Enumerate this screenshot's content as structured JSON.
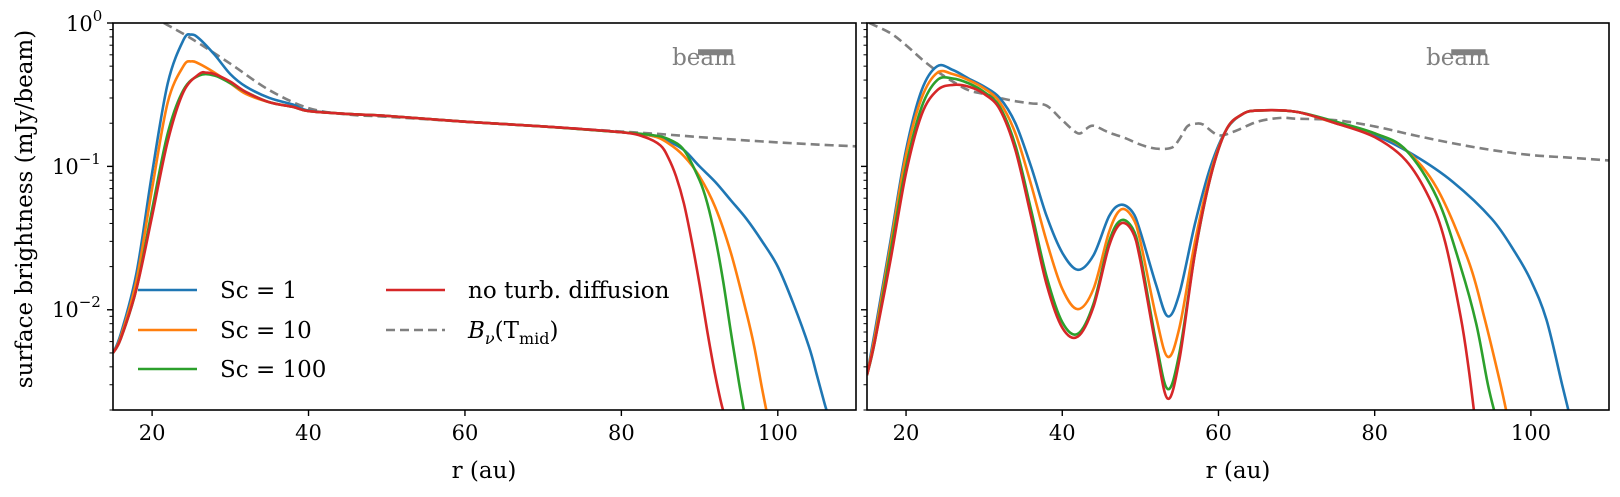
{
  "chart_data": [
    {
      "type": "line",
      "panel": "left",
      "xlabel": "r (au)",
      "ylabel": "surface brightness (mJy/beam)",
      "xlim": [
        15,
        110
      ],
      "ylim": [
        0.002,
        1.0
      ],
      "yscale": "log",
      "x_ticks": [
        20,
        40,
        60,
        80,
        100
      ],
      "y_tick_labels": [
        {
          "value": 1.0,
          "base": "10",
          "exp": "0"
        },
        {
          "value": 0.1,
          "base": "10",
          "exp": "−1"
        },
        {
          "value": 0.01,
          "base": "10",
          "exp": "−2"
        }
      ],
      "beam": {
        "label": "beam",
        "r_start": 89.8,
        "r_end": 94.2,
        "y": 0.625
      },
      "legend": {
        "placement": "lower-left",
        "columns": [
          [
            {
              "name": "Sc = 1",
              "color": "#1f77b4",
              "style": "solid"
            },
            {
              "name": "Sc = 10",
              "color": "#ff7f0e",
              "style": "solid"
            },
            {
              "name": "Sc = 100",
              "color": "#2ca02c",
              "style": "solid"
            }
          ],
          [
            {
              "name": "no turb. diffusion",
              "color": "#d62728",
              "style": "solid"
            },
            {
              "name": "B",
              "name_sub": "ν",
              "name_rest": "(T",
              "name_sub2": "mid",
              "name_end": ")",
              "color": "#808080",
              "style": "dashed"
            }
          ]
        ]
      },
      "series": [
        {
          "name": "B_nu(T_mid)",
          "color": "#808080",
          "dash": true,
          "x": [
            21.5,
            25,
            30,
            35,
            40,
            45,
            50,
            60,
            70,
            80,
            85,
            90,
            95,
            100,
            105,
            110
          ],
          "y": [
            1.0,
            0.78,
            0.52,
            0.34,
            0.255,
            0.23,
            0.222,
            0.205,
            0.19,
            0.175,
            0.168,
            0.16,
            0.153,
            0.147,
            0.142,
            0.138
          ]
        },
        {
          "name": "Sc = 1",
          "color": "#1f77b4",
          "dash": false,
          "x": [
            15,
            16,
            18,
            20,
            22,
            24,
            25,
            26,
            28,
            30,
            32,
            35,
            38,
            40,
            45,
            50,
            60,
            70,
            80,
            84,
            86,
            88,
            90,
            92,
            94,
            96,
            98,
            100,
            102,
            104,
            105,
            106,
            106.5
          ],
          "y": [
            0.005,
            0.0068,
            0.018,
            0.09,
            0.38,
            0.76,
            0.83,
            0.78,
            0.6,
            0.44,
            0.36,
            0.3,
            0.27,
            0.245,
            0.232,
            0.225,
            0.205,
            0.19,
            0.173,
            0.163,
            0.15,
            0.13,
            0.1,
            0.078,
            0.058,
            0.043,
            0.03,
            0.02,
            0.011,
            0.0055,
            0.0035,
            0.0022,
            0.0018
          ]
        },
        {
          "name": "Sc = 10",
          "color": "#ff7f0e",
          "dash": false,
          "x": [
            15,
            16,
            18,
            20,
            22,
            24,
            25,
            26,
            28,
            30,
            32,
            35,
            38,
            40,
            45,
            50,
            60,
            70,
            80,
            84,
            86,
            88,
            90,
            92,
            94,
            96,
            97,
            98,
            98.7
          ],
          "y": [
            0.005,
            0.0065,
            0.016,
            0.07,
            0.28,
            0.5,
            0.54,
            0.52,
            0.45,
            0.38,
            0.32,
            0.28,
            0.26,
            0.243,
            0.232,
            0.225,
            0.205,
            0.19,
            0.173,
            0.163,
            0.145,
            0.118,
            0.085,
            0.052,
            0.025,
            0.0095,
            0.0055,
            0.0028,
            0.0018
          ]
        },
        {
          "name": "Sc = 100",
          "color": "#2ca02c",
          "dash": false,
          "x": [
            15,
            16,
            18,
            20,
            22,
            24,
            26,
            28,
            30,
            32,
            35,
            38,
            40,
            45,
            50,
            60,
            70,
            80,
            84,
            86,
            88,
            90,
            91,
            92,
            93,
            94,
            95,
            95.8
          ],
          "y": [
            0.005,
            0.0063,
            0.014,
            0.05,
            0.17,
            0.34,
            0.43,
            0.43,
            0.38,
            0.33,
            0.28,
            0.26,
            0.243,
            0.232,
            0.225,
            0.205,
            0.19,
            0.173,
            0.165,
            0.155,
            0.13,
            0.08,
            0.055,
            0.032,
            0.016,
            0.007,
            0.0032,
            0.0018
          ]
        },
        {
          "name": "no turb. diffusion",
          "color": "#d62728",
          "dash": false,
          "x": [
            15,
            16,
            18,
            20,
            22,
            24,
            26,
            27,
            28,
            30,
            32,
            35,
            38,
            40,
            45,
            50,
            60,
            70,
            80,
            83,
            85,
            86,
            87,
            88,
            89,
            90,
            91,
            92,
            93,
            93.6
          ],
          "y": [
            0.005,
            0.0063,
            0.014,
            0.045,
            0.15,
            0.33,
            0.44,
            0.45,
            0.44,
            0.39,
            0.33,
            0.28,
            0.26,
            0.243,
            0.232,
            0.225,
            0.205,
            0.19,
            0.173,
            0.16,
            0.14,
            0.115,
            0.085,
            0.055,
            0.03,
            0.015,
            0.007,
            0.0035,
            0.002,
            0.0018
          ]
        }
      ]
    },
    {
      "type": "line",
      "panel": "right",
      "xlabel": "r (au)",
      "ylabel": "",
      "xlim": [
        15,
        110
      ],
      "ylim": [
        0.002,
        1.0
      ],
      "yscale": "log",
      "x_ticks": [
        20,
        40,
        60,
        80,
        100
      ],
      "beam": {
        "label": "beam",
        "r_start": 89.8,
        "r_end": 94.2,
        "y": 0.625
      },
      "series": [
        {
          "name": "B_nu(T_mid)",
          "color": "#808080",
          "dash": true,
          "x": [
            15.3,
            18,
            20,
            22,
            24,
            26,
            28,
            30,
            32,
            34,
            36,
            38,
            40,
            42,
            43,
            44,
            46,
            48,
            50,
            52,
            54,
            55,
            56,
            57,
            58,
            60,
            62,
            65,
            68,
            70,
            75,
            80,
            85,
            90,
            95,
            100,
            105,
            110
          ],
          "y": [
            1.0,
            0.85,
            0.7,
            0.56,
            0.46,
            0.39,
            0.34,
            0.32,
            0.3,
            0.285,
            0.275,
            0.265,
            0.21,
            0.17,
            0.182,
            0.192,
            0.172,
            0.158,
            0.142,
            0.133,
            0.135,
            0.155,
            0.19,
            0.198,
            0.196,
            0.165,
            0.175,
            0.205,
            0.218,
            0.215,
            0.21,
            0.19,
            0.165,
            0.145,
            0.13,
            0.12,
            0.115,
            0.11
          ]
        },
        {
          "name": "Sc = 1",
          "color": "#1f77b4",
          "dash": false,
          "x": [
            15,
            16,
            18,
            20,
            22,
            24,
            26,
            28,
            30,
            32,
            34,
            36,
            38,
            40,
            42,
            44,
            46,
            47.5,
            49,
            50,
            52,
            53.5,
            55,
            57,
            59,
            61,
            63,
            65,
            70,
            75,
            80,
            85,
            90,
            95,
            98,
            100,
            102,
            104,
            105
          ],
          "y": [
            0.0035,
            0.007,
            0.03,
            0.13,
            0.34,
            0.5,
            0.47,
            0.41,
            0.36,
            0.3,
            0.2,
            0.1,
            0.045,
            0.025,
            0.019,
            0.024,
            0.045,
            0.054,
            0.048,
            0.035,
            0.015,
            0.009,
            0.013,
            0.04,
            0.1,
            0.18,
            0.23,
            0.245,
            0.24,
            0.2,
            0.165,
            0.12,
            0.078,
            0.043,
            0.025,
            0.016,
            0.0085,
            0.003,
            0.0018
          ]
        },
        {
          "name": "Sc = 10",
          "color": "#ff7f0e",
          "dash": false,
          "x": [
            15,
            16,
            18,
            20,
            22,
            24,
            26,
            28,
            30,
            32,
            34,
            36,
            38,
            40,
            42,
            44,
            46,
            47.5,
            49,
            50,
            52,
            53.5,
            55,
            57,
            59,
            61,
            63,
            65,
            70,
            75,
            80,
            84,
            88,
            92,
            94,
            96,
            97
          ],
          "y": [
            0.0035,
            0.0065,
            0.028,
            0.12,
            0.3,
            0.45,
            0.44,
            0.4,
            0.35,
            0.28,
            0.17,
            0.075,
            0.03,
            0.014,
            0.0101,
            0.014,
            0.035,
            0.05,
            0.044,
            0.03,
            0.009,
            0.0047,
            0.0075,
            0.03,
            0.09,
            0.18,
            0.23,
            0.245,
            0.24,
            0.2,
            0.17,
            0.13,
            0.07,
            0.022,
            0.009,
            0.0032,
            0.0018
          ]
        },
        {
          "name": "Sc = 100",
          "color": "#2ca02c",
          "dash": false,
          "x": [
            15,
            16,
            18,
            20,
            22,
            24,
            26,
            28,
            30,
            32,
            34,
            36,
            38,
            40,
            42,
            44,
            46,
            47.5,
            49,
            50,
            52,
            53.5,
            55,
            57,
            59,
            61,
            63,
            65,
            70,
            75,
            80,
            84,
            88,
            91,
            93,
            94.5,
            95.5
          ],
          "y": [
            0.0035,
            0.006,
            0.025,
            0.1,
            0.26,
            0.4,
            0.41,
            0.38,
            0.33,
            0.26,
            0.14,
            0.05,
            0.017,
            0.0082,
            0.0068,
            0.011,
            0.03,
            0.042,
            0.037,
            0.024,
            0.006,
            0.0028,
            0.005,
            0.025,
            0.085,
            0.18,
            0.23,
            0.245,
            0.24,
            0.205,
            0.17,
            0.13,
            0.06,
            0.02,
            0.008,
            0.003,
            0.0018
          ]
        },
        {
          "name": "no turb. diffusion",
          "color": "#d62728",
          "dash": false,
          "x": [
            15,
            16,
            18,
            20,
            22,
            24,
            26,
            28,
            30,
            32,
            34,
            36,
            38,
            40,
            42,
            44,
            46,
            47.5,
            49,
            50,
            52,
            53.5,
            55,
            57,
            59,
            61,
            63,
            65,
            70,
            75,
            80,
            84,
            87,
            89,
            91,
            92,
            92.8
          ],
          "y": [
            0.0035,
            0.006,
            0.022,
            0.09,
            0.23,
            0.34,
            0.37,
            0.36,
            0.32,
            0.25,
            0.13,
            0.045,
            0.015,
            0.0075,
            0.0065,
            0.0105,
            0.028,
            0.04,
            0.035,
            0.022,
            0.0055,
            0.0024,
            0.0045,
            0.025,
            0.085,
            0.18,
            0.23,
            0.245,
            0.24,
            0.2,
            0.16,
            0.11,
            0.06,
            0.03,
            0.009,
            0.004,
            0.0018
          ]
        }
      ]
    }
  ]
}
